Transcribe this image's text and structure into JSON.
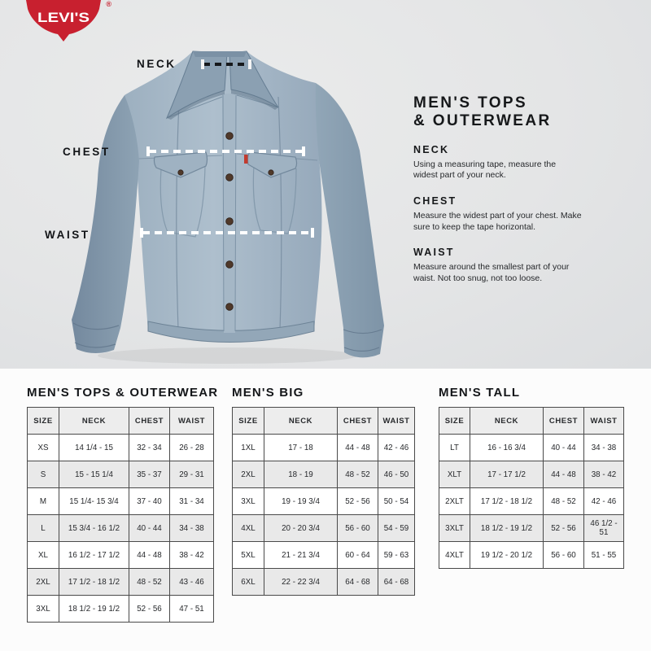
{
  "brand": {
    "logo_text": "LEVI'S",
    "registered": "®"
  },
  "diagram": {
    "neck_label": "NECK",
    "chest_label": "CHEST",
    "waist_label": "WAIST"
  },
  "guide": {
    "title_line1": "MEN'S TOPS",
    "title_line2": "& OUTERWEAR",
    "sections": [
      {
        "heading": "NECK",
        "text": "Using a measuring tape, measure the\nwidest part of your neck."
      },
      {
        "heading": "CHEST",
        "text": "Measure the widest part of your chest. Make\nsure to keep the tape horizontal."
      },
      {
        "heading": "WAIST",
        "text": "Measure around the smallest part of your\nwaist. Not too snug, not too loose."
      }
    ]
  },
  "tables": [
    {
      "title": "MEN'S TOPS & OUTERWEAR",
      "columns": [
        "SIZE",
        "NECK",
        "CHEST",
        "WAIST"
      ],
      "rows": [
        [
          "XS",
          "14 1/4 - 15",
          "32 - 34",
          "26 - 28"
        ],
        [
          "S",
          "15 - 15 1/4",
          "35 - 37",
          "29 - 31"
        ],
        [
          "M",
          "15 1/4- 15 3/4",
          "37 - 40",
          "31 - 34"
        ],
        [
          "L",
          "15 3/4 - 16 1/2",
          "40 - 44",
          "34 - 38"
        ],
        [
          "XL",
          "16 1/2 - 17 1/2",
          "44 - 48",
          "38 - 42"
        ],
        [
          "2XL",
          "17 1/2 - 18 1/2",
          "48 - 52",
          "43 - 46"
        ],
        [
          "3XL",
          "18 1/2 - 19 1/2",
          "52 - 56",
          "47 - 51"
        ]
      ]
    },
    {
      "title": "MEN'S BIG",
      "columns": [
        "SIZE",
        "NECK",
        "CHEST",
        "WAIST"
      ],
      "rows": [
        [
          "1XL",
          "17 - 18",
          "44 - 48",
          "42 - 46"
        ],
        [
          "2XL",
          "18 - 19",
          "48 - 52",
          "46 - 50"
        ],
        [
          "3XL",
          "19 - 19 3/4",
          "52 - 56",
          "50 - 54"
        ],
        [
          "4XL",
          "20 - 20 3/4",
          "56 - 60",
          "54 - 59"
        ],
        [
          "5XL",
          "21 - 21 3/4",
          "60 - 64",
          "59 - 63"
        ],
        [
          "6XL",
          "22 - 22 3/4",
          "64 - 68",
          "64 - 68"
        ]
      ]
    },
    {
      "title": "MEN'S TALL",
      "columns": [
        "SIZE",
        "NECK",
        "CHEST",
        "WAIST"
      ],
      "rows": [
        [
          "LT",
          "16 - 16 3/4",
          "40 - 44",
          "34 - 38"
        ],
        [
          "XLT",
          "17 - 17 1/2",
          "44 - 48",
          "38 - 42"
        ],
        [
          "2XLT",
          "17 1/2 - 18 1/2",
          "48 - 52",
          "42 - 46"
        ],
        [
          "3XLT",
          "18 1/2 - 19 1/2",
          "52 - 56",
          "46 1/2 - 51"
        ],
        [
          "4XLT",
          "19 1/2 - 20 1/2",
          "56 - 60",
          "51 - 55"
        ]
      ]
    }
  ],
  "colors": {
    "brand_red": "#c8202f",
    "bg_gray": "#e4e5e6",
    "denim_light": "#a9bac8",
    "denim_mid": "#8ba0b2",
    "denim_dark": "#6d8396",
    "tag_orange": "#bf6228",
    "red_tab": "#c23b2e",
    "line_dark": "#16181b",
    "line_white": "#ffffff",
    "row_alt": "#e9e9e9",
    "border_gray": "#4a4a4a"
  }
}
